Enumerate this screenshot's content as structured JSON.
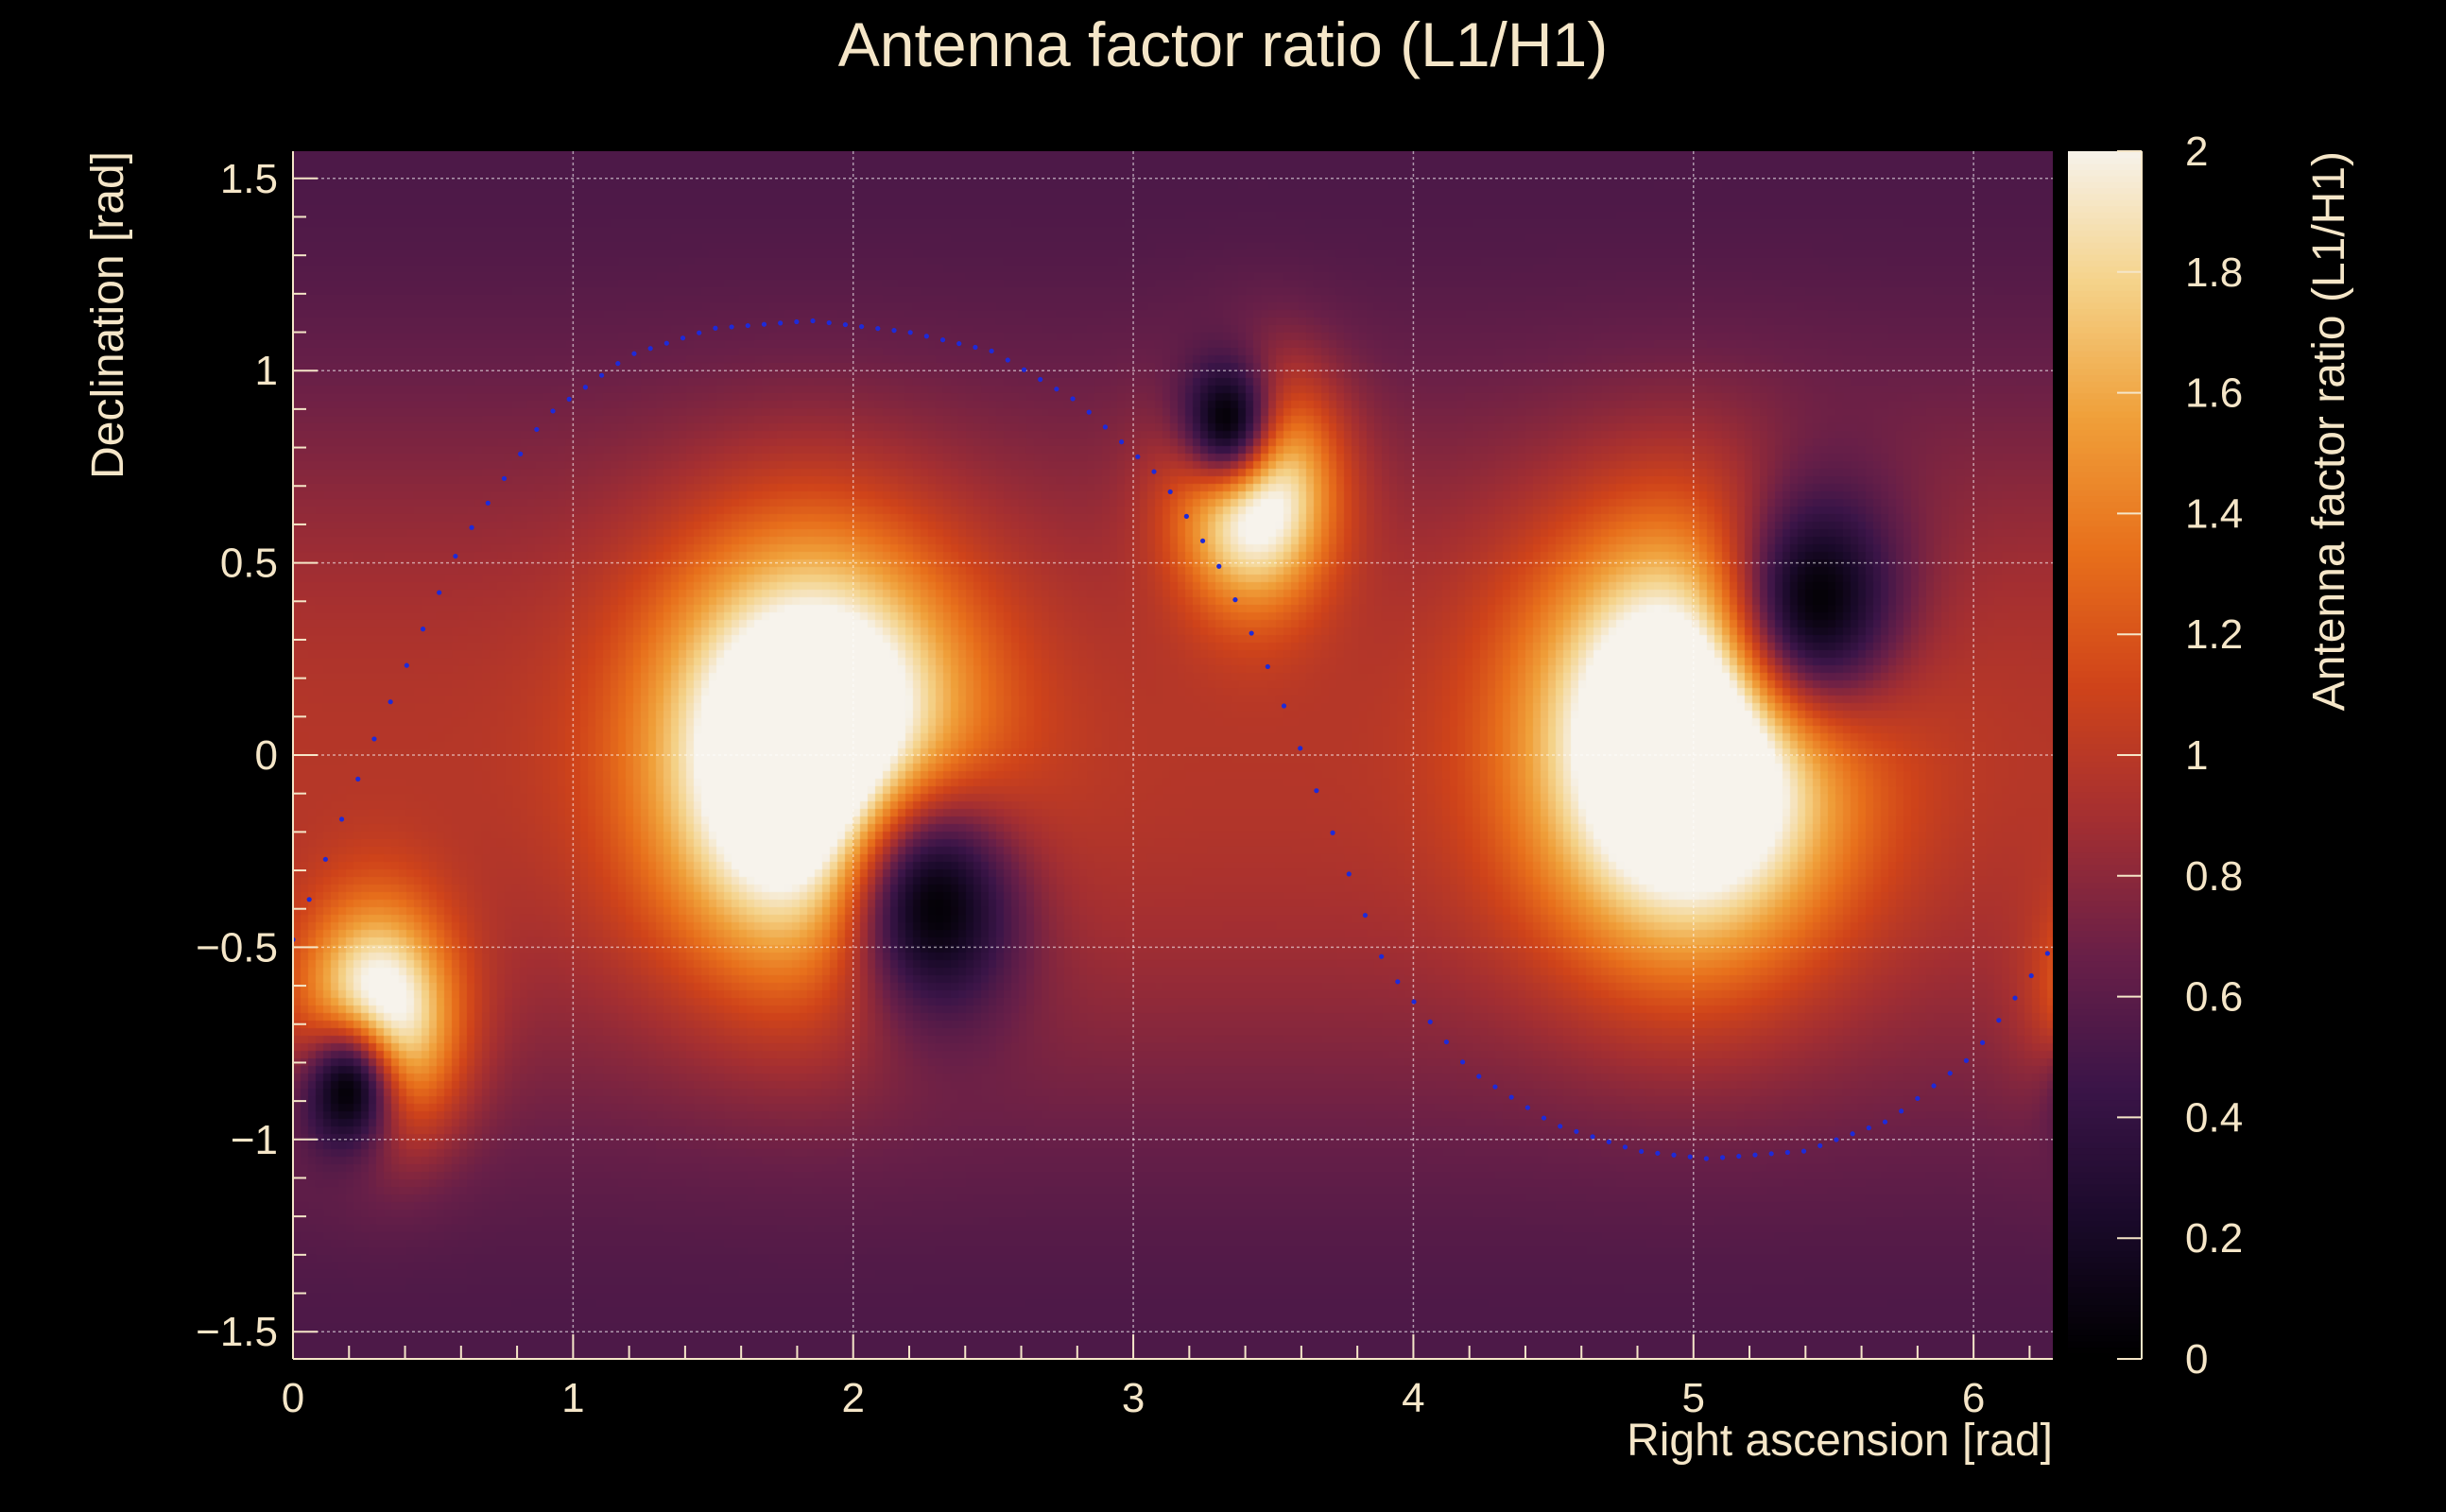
{
  "chart_data": {
    "type": "heatmap",
    "title": "Antenna factor ratio (L1/H1)",
    "xlabel": "Right ascension [rad]",
    "ylabel": "Declination [rad]",
    "zlabel": "Antenna factor ratio (L1/H1)",
    "xlim": [
      0,
      6.283
    ],
    "ylim": [
      -1.5708,
      1.5708
    ],
    "zlim": [
      0,
      2
    ],
    "x_ticks": [
      0,
      1,
      2,
      3,
      4,
      5,
      6
    ],
    "x_tick_labels": [
      "0",
      "1",
      "2",
      "3",
      "4",
      "5",
      "6"
    ],
    "y_ticks": [
      -1.5,
      -1,
      -0.5,
      0,
      0.5,
      1,
      1.5
    ],
    "y_tick_labels": [
      "−1.5",
      "−1",
      "−0.5",
      "0",
      "0.5",
      "1",
      "1.5"
    ],
    "z_ticks": [
      0,
      0.2,
      0.4,
      0.6,
      0.8,
      1,
      1.2,
      1.4,
      1.6,
      1.8,
      2
    ],
    "z_tick_labels": [
      "0",
      "0.2",
      "0.4",
      "0.6",
      "0.8",
      "1",
      "1.2",
      "1.4",
      "1.6",
      "1.8",
      "2"
    ],
    "grid": true,
    "colormap": [
      "#000000",
      "#1a0a2a",
      "#3b1548",
      "#6a2048",
      "#a42f32",
      "#d0441a",
      "#e8701c",
      "#f0a03a",
      "#f5d38a",
      "#f7f3ec"
    ],
    "peaks": [
      {
        "ra": 1.85,
        "dec": 0.0,
        "value": 2.0
      },
      {
        "ra": 4.98,
        "dec": 0.03,
        "value": 2.0
      },
      {
        "ra": 3.43,
        "dec": 0.7,
        "value": 2.0
      },
      {
        "ra": 0.3,
        "dec": -0.7,
        "value": 2.0
      }
    ],
    "minima": [
      {
        "ra": 2.3,
        "dec": -0.4,
        "value": 0.0
      },
      {
        "ra": 5.45,
        "dec": 0.41,
        "value": 0.0
      },
      {
        "ra": 3.33,
        "dec": 0.88,
        "value": 0.0
      },
      {
        "ra": 0.19,
        "dec": -0.88,
        "value": 0.0
      }
    ],
    "dotted_curve": {
      "color": "#1e2ad8",
      "points": [
        {
          "ra": 0.0,
          "dec": -0.48
        },
        {
          "ra": 0.3,
          "dec": 0.06
        },
        {
          "ra": 0.6,
          "dec": 0.55
        },
        {
          "ra": 0.9,
          "dec": 0.88
        },
        {
          "ra": 1.2,
          "dec": 1.04
        },
        {
          "ra": 1.5,
          "dec": 1.11
        },
        {
          "ra": 1.85,
          "dec": 1.13
        },
        {
          "ra": 2.2,
          "dec": 1.1
        },
        {
          "ra": 2.5,
          "dec": 1.05
        },
        {
          "ra": 2.8,
          "dec": 0.92
        },
        {
          "ra": 3.1,
          "dec": 0.72
        },
        {
          "ra": 3.3,
          "dec": 0.5
        },
        {
          "ra": 3.5,
          "dec": 0.2
        },
        {
          "ra": 3.7,
          "dec": -0.18
        },
        {
          "ra": 3.9,
          "dec": -0.55
        },
        {
          "ra": 4.2,
          "dec": -0.82
        },
        {
          "ra": 4.5,
          "dec": -0.96
        },
        {
          "ra": 4.8,
          "dec": -1.03
        },
        {
          "ra": 5.05,
          "dec": -1.05
        },
        {
          "ra": 5.4,
          "dec": -1.03
        },
        {
          "ra": 5.7,
          "dec": -0.95
        },
        {
          "ra": 6.0,
          "dec": -0.78
        },
        {
          "ra": 6.28,
          "dec": -0.5
        }
      ]
    }
  }
}
